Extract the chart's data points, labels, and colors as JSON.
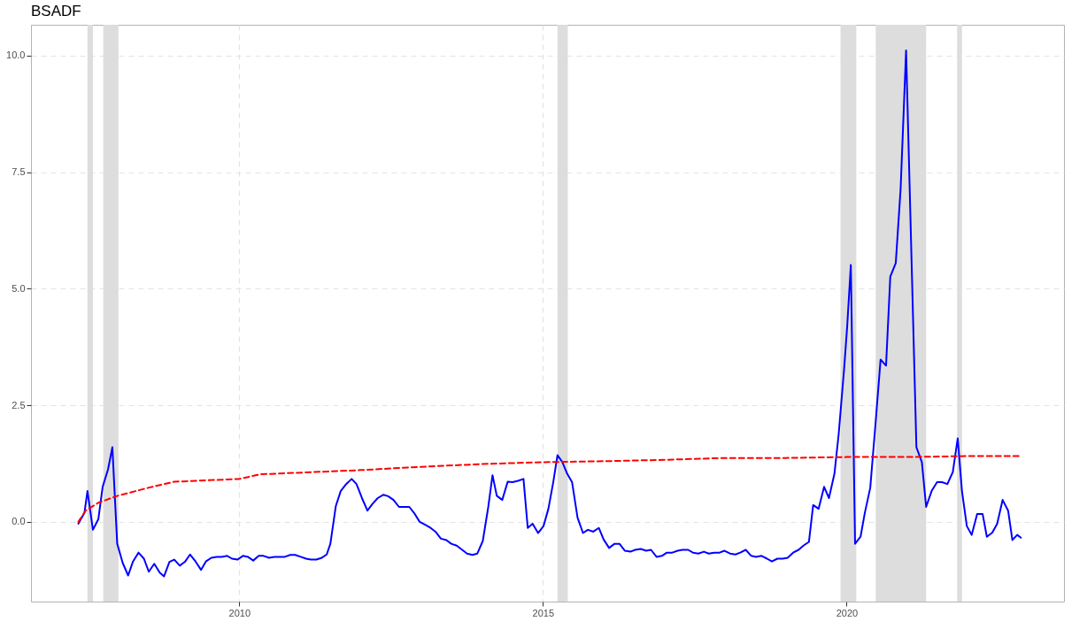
{
  "chart_data": {
    "type": "line",
    "title": "BSADF",
    "xlim": [
      2006.57,
      2023.58
    ],
    "ylim": [
      -1.71,
      10.66
    ],
    "xticks": [
      2010,
      2015,
      2020
    ],
    "yticks": [
      {
        "value": 0,
        "label": "0.0"
      },
      {
        "value": 2.5,
        "label": "2.5"
      },
      {
        "value": 5,
        "label": "5.0"
      },
      {
        "value": 7.5,
        "label": "7.5"
      },
      {
        "value": 10,
        "label": "10.0"
      }
    ],
    "grid": true,
    "bands": [
      {
        "axis": "x",
        "from": 2007.5,
        "to": 2007.59,
        "color": "#dddddd"
      },
      {
        "axis": "x",
        "from": 2007.76,
        "to": 2008.01,
        "color": "#dddddd"
      },
      {
        "axis": "x",
        "from": 2015.24,
        "to": 2015.41,
        "color": "#dddddd"
      },
      {
        "axis": "x",
        "from": 2019.9,
        "to": 2020.16,
        "color": "#dddddd"
      },
      {
        "axis": "x",
        "from": 2020.48,
        "to": 2021.31,
        "color": "#dddddd"
      },
      {
        "axis": "x",
        "from": 2021.82,
        "to": 2021.9,
        "color": "#dddddd"
      }
    ],
    "series": [
      {
        "color": "#0000ff",
        "line_style": "solid",
        "x": [
          2007.35,
          2007.45,
          2007.5,
          2007.59,
          2007.68,
          2007.75,
          2007.84,
          2007.91,
          2007.99,
          2008.08,
          2008.17,
          2008.25,
          2008.34,
          2008.43,
          2008.51,
          2008.6,
          2008.69,
          2008.76,
          2008.85,
          2008.93,
          2009.02,
          2009.11,
          2009.19,
          2009.28,
          2009.37,
          2009.45,
          2009.54,
          2009.63,
          2009.71,
          2009.8,
          2009.88,
          2009.97,
          2010.06,
          2010.14,
          2010.23,
          2010.32,
          2010.4,
          2010.49,
          2010.58,
          2010.66,
          2010.75,
          2010.84,
          2010.92,
          2011.01,
          2011.1,
          2011.18,
          2011.27,
          2011.36,
          2011.44,
          2011.5,
          2011.59,
          2011.67,
          2011.76,
          2011.85,
          2011.93,
          2012.02,
          2012.11,
          2012.19,
          2012.28,
          2012.37,
          2012.45,
          2012.54,
          2012.63,
          2012.71,
          2012.8,
          2012.89,
          2012.97,
          2013.06,
          2013.15,
          2013.23,
          2013.32,
          2013.41,
          2013.49,
          2013.58,
          2013.67,
          2013.75,
          2013.84,
          2013.92,
          2014.01,
          2014.1,
          2014.17,
          2014.24,
          2014.33,
          2014.42,
          2014.5,
          2014.59,
          2014.68,
          2014.75,
          2014.83,
          2014.92,
          2015.01,
          2015.09,
          2015.17,
          2015.24,
          2015.32,
          2015.4,
          2015.48,
          2015.57,
          2015.66,
          2015.74,
          2015.83,
          2015.92,
          2016.0,
          2016.09,
          2016.18,
          2016.26,
          2016.35,
          2016.44,
          2016.52,
          2016.61,
          2016.7,
          2016.78,
          2016.87,
          2016.96,
          2017.04,
          2017.13,
          2017.22,
          2017.3,
          2017.39,
          2017.47,
          2017.56,
          2017.65,
          2017.73,
          2017.82,
          2017.91,
          2017.99,
          2018.08,
          2018.17,
          2018.25,
          2018.34,
          2018.43,
          2018.51,
          2018.6,
          2018.69,
          2018.77,
          2018.86,
          2018.95,
          2019.03,
          2019.12,
          2019.21,
          2019.29,
          2019.38,
          2019.45,
          2019.54,
          2019.63,
          2019.71,
          2019.8,
          2019.87,
          2019.96,
          2020.01,
          2020.07,
          2020.14,
          2020.23,
          2020.3,
          2020.39,
          2020.48,
          2020.56,
          2020.65,
          2020.72,
          2020.81,
          2020.89,
          2020.98,
          2021.15,
          2021.24,
          2021.31,
          2021.4,
          2021.49,
          2021.57,
          2021.66,
          2021.75,
          2021.83,
          2021.9,
          2021.98,
          2022.06,
          2022.15,
          2022.24,
          2022.31,
          2022.4,
          2022.48,
          2022.57,
          2022.66,
          2022.73,
          2022.81,
          2022.87
        ],
        "values": [
          -0.04,
          0.19,
          0.66,
          -0.17,
          0.06,
          0.75,
          1.13,
          1.6,
          -0.47,
          -0.88,
          -1.15,
          -0.85,
          -0.66,
          -0.79,
          -1.07,
          -0.9,
          -1.09,
          -1.17,
          -0.86,
          -0.81,
          -0.94,
          -0.85,
          -0.7,
          -0.85,
          -1.03,
          -0.85,
          -0.77,
          -0.75,
          -0.75,
          -0.73,
          -0.79,
          -0.81,
          -0.73,
          -0.75,
          -0.83,
          -0.73,
          -0.73,
          -0.77,
          -0.75,
          -0.75,
          -0.75,
          -0.71,
          -0.71,
          -0.75,
          -0.79,
          -0.81,
          -0.81,
          -0.77,
          -0.7,
          -0.47,
          0.34,
          0.66,
          0.81,
          0.92,
          0.81,
          0.51,
          0.24,
          0.38,
          0.51,
          0.58,
          0.55,
          0.47,
          0.32,
          0.32,
          0.32,
          0.17,
          0,
          -0.06,
          -0.13,
          -0.21,
          -0.36,
          -0.39,
          -0.47,
          -0.51,
          -0.6,
          -0.68,
          -0.71,
          -0.68,
          -0.41,
          0.32,
          1.0,
          0.56,
          0.47,
          0.86,
          0.85,
          0.88,
          0.92,
          -0.13,
          -0.04,
          -0.24,
          -0.09,
          0.28,
          0.85,
          1.43,
          1.28,
          1.03,
          0.85,
          0.09,
          -0.24,
          -0.17,
          -0.21,
          -0.13,
          -0.38,
          -0.56,
          -0.47,
          -0.47,
          -0.62,
          -0.64,
          -0.6,
          -0.58,
          -0.62,
          -0.6,
          -0.75,
          -0.73,
          -0.66,
          -0.66,
          -0.62,
          -0.6,
          -0.6,
          -0.66,
          -0.68,
          -0.64,
          -0.68,
          -0.66,
          -0.66,
          -0.62,
          -0.68,
          -0.7,
          -0.66,
          -0.6,
          -0.73,
          -0.75,
          -0.73,
          -0.79,
          -0.85,
          -0.79,
          -0.79,
          -0.77,
          -0.66,
          -0.6,
          -0.51,
          -0.43,
          0.36,
          0.28,
          0.75,
          0.51,
          1.03,
          1.88,
          3.29,
          4.19,
          5.51,
          -0.47,
          -0.32,
          0.19,
          0.73,
          2.16,
          3.48,
          3.35,
          5.26,
          5.55,
          7.14,
          10.11,
          1.6,
          1.28,
          0.32,
          0.66,
          0.85,
          0.85,
          0.81,
          1.07,
          1.79,
          0.66,
          -0.09,
          -0.28,
          0.17,
          0.17,
          -0.32,
          -0.23,
          -0.04,
          0.47,
          0.24,
          -0.39,
          -0.28,
          -0.34
        ]
      },
      {
        "color": "#ff0000",
        "line_style": "dashed",
        "x": [
          2007.35,
          2007.47,
          2007.68,
          2008.0,
          2008.5,
          2008.93,
          2010.0,
          2010.35,
          2012.0,
          2013.0,
          2014.0,
          2015.0,
          2016.0,
          2017.0,
          2018.0,
          2019.0,
          2020.0,
          2021.0,
          2022.0,
          2022.87
        ],
        "values": [
          0.0,
          0.24,
          0.41,
          0.56,
          0.73,
          0.86,
          0.92,
          1.02,
          1.11,
          1.18,
          1.24,
          1.28,
          1.3,
          1.33,
          1.37,
          1.37,
          1.39,
          1.39,
          1.41,
          1.41
        ]
      }
    ]
  }
}
